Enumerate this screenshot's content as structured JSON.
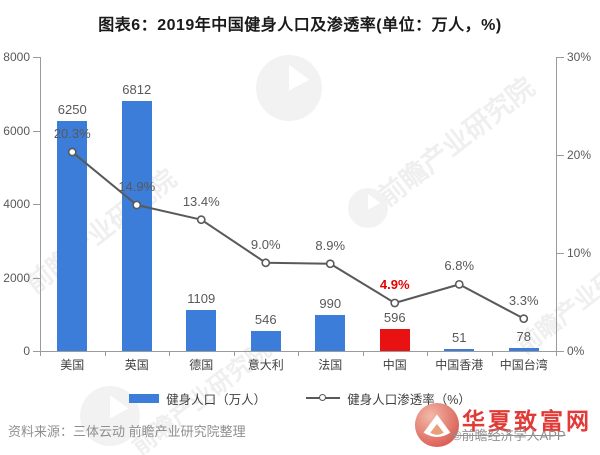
{
  "chart_data": {
    "type": "bar+line",
    "title": "图表6：2019年中国健身人口及渗透率(单位：万人，%)",
    "categories": [
      "美国",
      "英国",
      "德国",
      "意大利",
      "法国",
      "中国",
      "中国香港",
      "中国台湾"
    ],
    "series": [
      {
        "name": "健身人口（万人）",
        "type": "bar",
        "axis": "left",
        "values": [
          6250,
          6812,
          1109,
          546,
          990,
          596,
          51,
          78
        ],
        "value_labels": [
          "6250",
          "6812",
          "1109",
          "546",
          "990",
          "596",
          "51",
          "78"
        ],
        "highlight_index": 5
      },
      {
        "name": "健身人口渗透率（%）",
        "type": "line",
        "axis": "right",
        "values": [
          20.3,
          14.9,
          13.4,
          9.0,
          8.9,
          4.9,
          6.8,
          3.3
        ],
        "value_labels": [
          "20.3%",
          "14.9%",
          "13.4%",
          "9.0%",
          "8.9%",
          "4.9%",
          "6.8%",
          "3.3%"
        ],
        "highlight_index": 5
      }
    ],
    "left_axis": {
      "min": 0,
      "max": 8000,
      "ticks": [
        0,
        2000,
        4000,
        6000,
        8000
      ],
      "tick_labels": [
        "0",
        "2000",
        "4000",
        "6000",
        "8000"
      ]
    },
    "right_axis": {
      "min": 0,
      "max": 30,
      "ticks": [
        0,
        10,
        20,
        30
      ],
      "tick_labels": [
        "0%",
        "10%",
        "20%",
        "30%"
      ]
    },
    "legend_position": "bottom",
    "grid": false
  },
  "source": "资料来源：三体云动 前瞻产业研究院整理",
  "watermarks": {
    "diagonal_text": "前瞻产业研究院",
    "site_name": "华夏致富网",
    "struck_text": "©前瞻经济学人APP"
  },
  "colors": {
    "bar": "#3b7dd8",
    "bar_highlight": "#e81212",
    "line": "#595959",
    "marker_fill": "#ffffff",
    "value_label": "#595959",
    "pct_label_highlight": "#e60000",
    "axis": "#9b9b9b",
    "axis_text": "#595959",
    "category_label": "#404040",
    "title_text": "#1a1a1a",
    "source_text": "#8f8f8f",
    "brand_red": "#e23a36",
    "watermark_gray": "#a0a0a0"
  }
}
